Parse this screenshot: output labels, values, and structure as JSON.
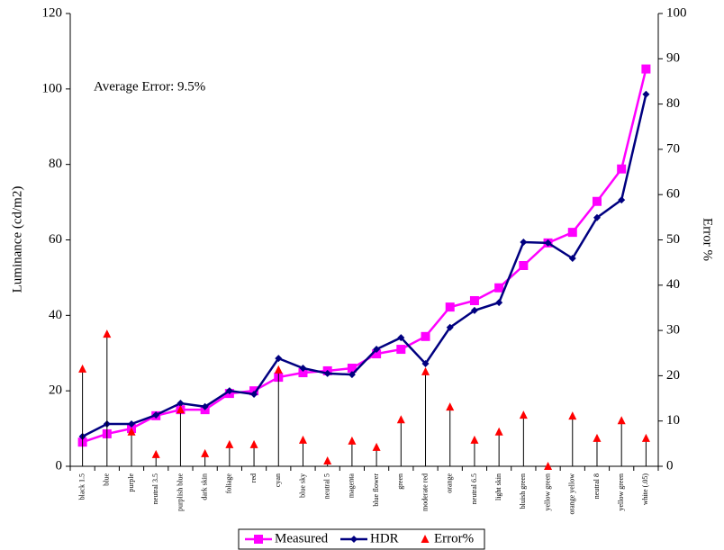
{
  "chart_data": {
    "type": "line",
    "y_label": "Luminance (cd/m2)",
    "y2_label": "Error %",
    "annotation": "Average Error: 9.5%",
    "categories": [
      "black 1.5",
      "blue",
      "purple",
      "neutral 3.5",
      "purplish blue",
      "dark skin",
      "foliage",
      "red",
      "cyan",
      "blue sky",
      "neutral 5",
      "magenta",
      "blue flower",
      "green",
      "moderate red",
      "orange",
      "neutral 6.5",
      "light skin",
      "bluish green",
      "yellow green",
      "orange yellow",
      "neutral 8",
      "yellow green",
      "white (.05)"
    ],
    "series": [
      {
        "name": "Measured",
        "color": "#ff00ff",
        "marker": "square",
        "values": [
          6.4,
          8.6,
          10,
          13.4,
          15,
          15,
          19.3,
          20,
          23.6,
          24.8,
          25.3,
          26,
          29.8,
          31,
          34.4,
          42.2,
          43.9,
          47.3,
          53.2,
          59.2,
          62,
          70.2,
          78.8,
          105.3
        ]
      },
      {
        "name": "HDR",
        "color": "#000080",
        "marker": "diamond",
        "values": [
          7.9,
          11.2,
          11.2,
          13.6,
          16.7,
          15.8,
          20,
          19.1,
          28.6,
          26,
          24.6,
          24.3,
          31,
          34.1,
          27.2,
          36.8,
          41.3,
          43.4,
          59.4,
          59.2,
          55.1,
          65.9,
          70.6,
          98.6
        ]
      },
      {
        "name": "Error%",
        "color": "#ff0000",
        "marker": "triangle",
        "axis": "y2",
        "values": [
          21.5,
          29.2,
          7.6,
          2.6,
          12.5,
          2.8,
          4.8,
          4.8,
          21.3,
          5.8,
          1.2,
          5.6,
          4.2,
          10.3,
          20.9,
          13.1,
          5.8,
          7.6,
          11.3,
          0,
          11.1,
          6.2,
          10.1,
          6.2
        ]
      }
    ],
    "ylim": [
      0,
      120
    ],
    "yticks": [
      0,
      20,
      40,
      60,
      80,
      100,
      120
    ],
    "y2lim": [
      0,
      100
    ],
    "y2ticks": [
      0,
      10,
      20,
      30,
      40,
      50,
      60,
      70,
      80,
      90,
      100
    ],
    "legend": "bottom"
  }
}
